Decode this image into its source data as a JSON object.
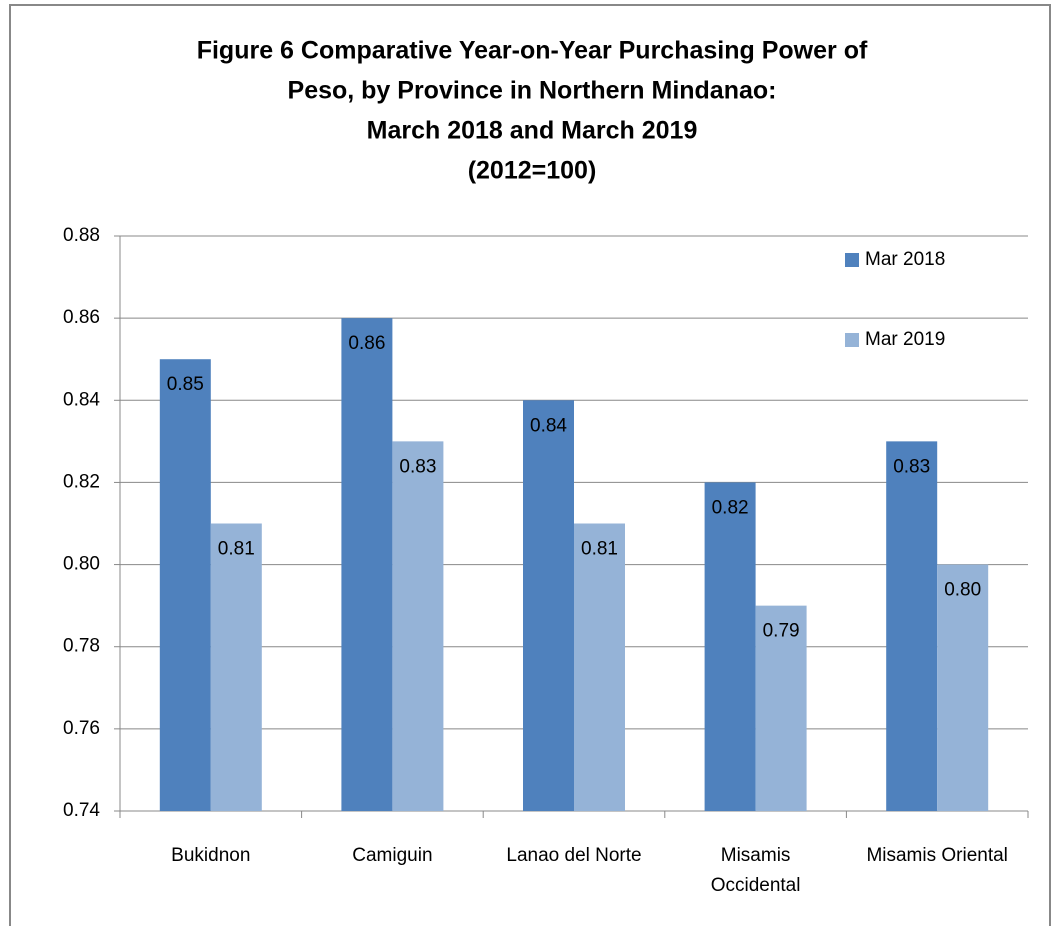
{
  "chart_data": {
    "type": "bar",
    "title": [
      "Figure 6 Comparative Year-on-Year Purchasing Power of",
      "Peso, by Province in Northern Mindanao:",
      "March 2018 and March 2019",
      "(2012=100)"
    ],
    "categories": [
      "Bukidnon",
      "Camiguin",
      "Lanao del Norte",
      "Misamis Occidental",
      "Misamis Oriental"
    ],
    "series": [
      {
        "name": "Mar 2018",
        "color": "#4f81bd",
        "values": [
          0.85,
          0.86,
          0.84,
          0.82,
          0.83
        ]
      },
      {
        "name": "Mar 2019",
        "color": "#95b3d7",
        "values": [
          0.81,
          0.83,
          0.81,
          0.79,
          0.8
        ],
        "value_labels": [
          "0.81",
          "0.83",
          "0.81",
          "0.79",
          "0.80"
        ]
      }
    ],
    "ylim": [
      0.74,
      0.88
    ],
    "yticks": [
      0.74,
      0.76,
      0.78,
      {
        "value": 0.8,
        "label": "0.80"
      },
      0.82,
      0.84,
      0.86,
      0.88
    ],
    "grid": true,
    "legend": "upper right"
  }
}
